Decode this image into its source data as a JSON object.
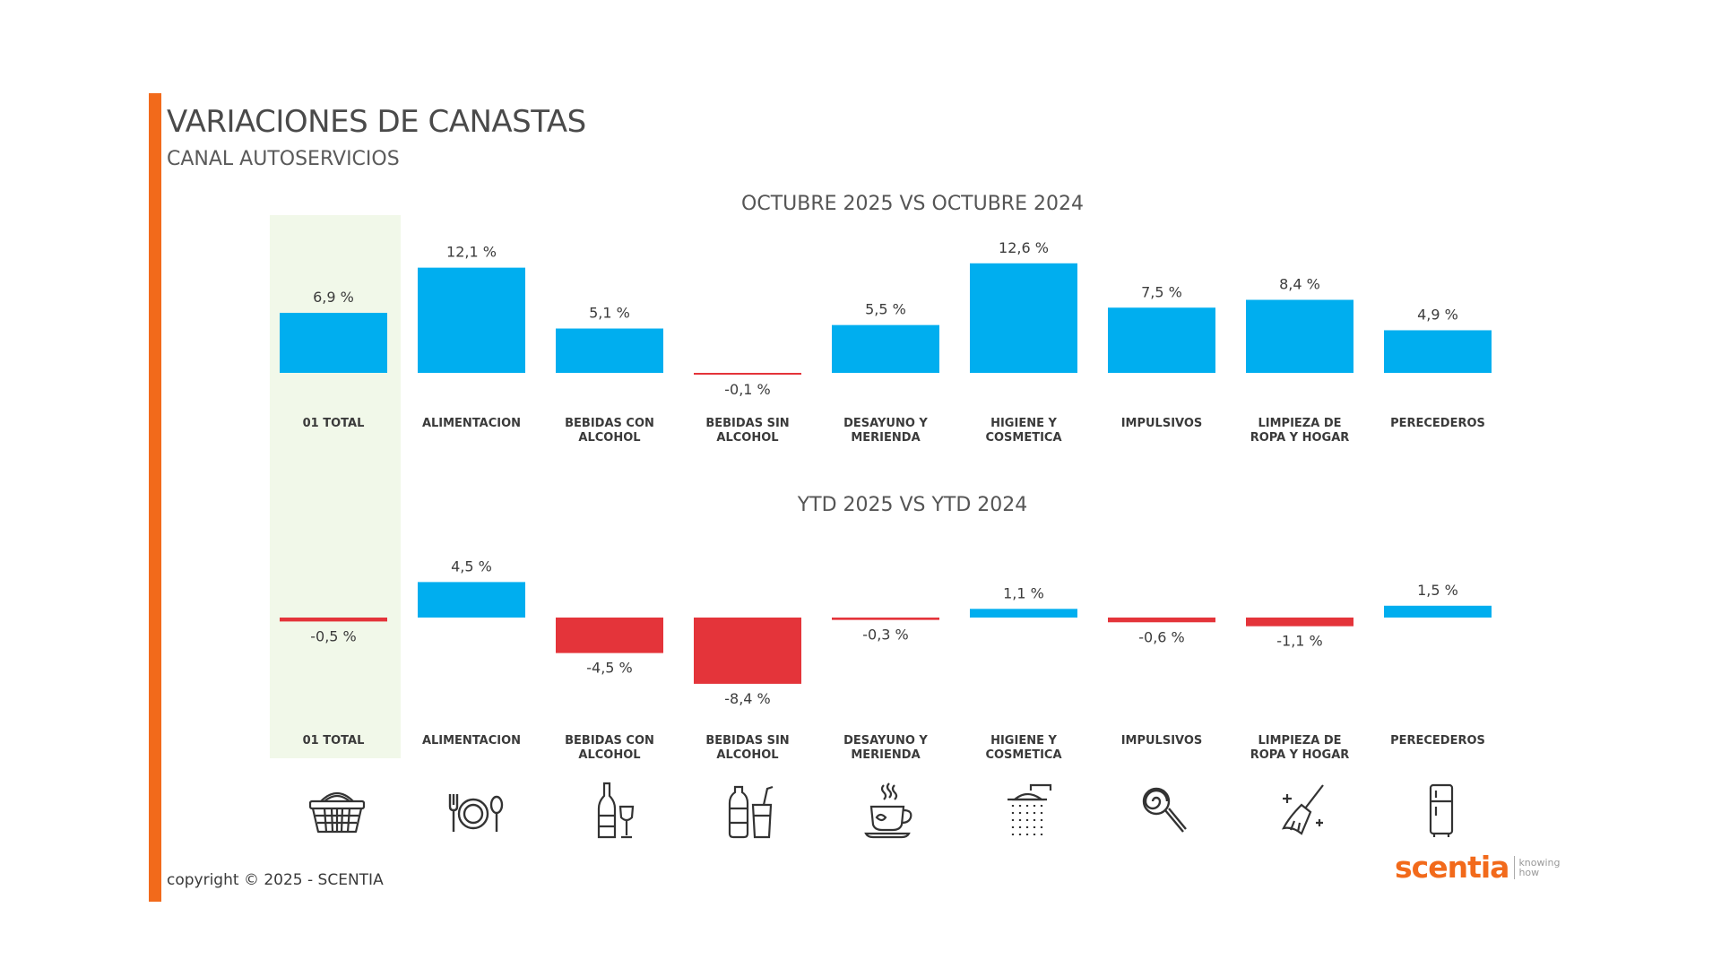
{
  "header": {
    "title": "VARIACIONES DE CANASTAS",
    "subtitle": "CANAL AUTOSERVICIOS"
  },
  "colors": {
    "accent": "#f26a1b",
    "positive": "#00aeef",
    "negative": "#e4343a",
    "highlight": "#f1f8e9",
    "text": "#3c3c3c"
  },
  "chart_data": [
    {
      "type": "bar",
      "title": "OCTUBRE 2025 VS OCTUBRE 2024",
      "categories": [
        "01 TOTAL",
        "ALIMENTACION",
        "BEBIDAS CON ALCOHOL",
        "BEBIDAS SIN ALCOHOL",
        "DESAYUNO Y MERIENDA",
        "HIGIENE Y COSMETICA",
        "IMPULSIVOS",
        "LIMPIEZA DE ROPA Y HOGAR",
        "PERECEDEROS"
      ],
      "values": [
        6.9,
        12.1,
        5.1,
        -0.1,
        5.5,
        12.6,
        7.5,
        8.4,
        4.9
      ],
      "labels": [
        "6,9 %",
        "12,1 %",
        "5,1 %",
        "-0,1 %",
        "5,5 %",
        "12,6 %",
        "7,5 %",
        "8,4 %",
        "4,9 %"
      ],
      "xlabel": "",
      "ylabel": ""
    },
    {
      "type": "bar",
      "title": "YTD 2025 VS YTD 2024",
      "categories": [
        "01 TOTAL",
        "ALIMENTACION",
        "BEBIDAS CON ALCOHOL",
        "BEBIDAS SIN ALCOHOL",
        "DESAYUNO Y MERIENDA",
        "HIGIENE Y COSMETICA",
        "IMPULSIVOS",
        "LIMPIEZA DE ROPA Y HOGAR",
        "PERECEDEROS"
      ],
      "values": [
        -0.5,
        4.5,
        -4.5,
        -8.4,
        -0.3,
        1.1,
        -0.6,
        -1.1,
        1.5
      ],
      "labels": [
        "-0,5 %",
        "4,5 %",
        "-4,5 %",
        "-8,4 %",
        "-0,3 %",
        "1,1 %",
        "-0,6 %",
        "-1,1 %",
        "1,5 %"
      ],
      "xlabel": "",
      "ylabel": ""
    }
  ],
  "category_icons": [
    "basket-icon",
    "cutlery-plate-icon",
    "wine-bottle-glass-icon",
    "soda-bottle-cup-icon",
    "coffee-cup-icon",
    "shower-icon",
    "lollipop-icon",
    "broom-sparkle-icon",
    "refrigerator-icon"
  ],
  "footer": {
    "copyright": "copyright © 2025 - SCENTIA",
    "logo_word": "scentia",
    "logo_tag_1": "knowing",
    "logo_tag_2": "how"
  }
}
